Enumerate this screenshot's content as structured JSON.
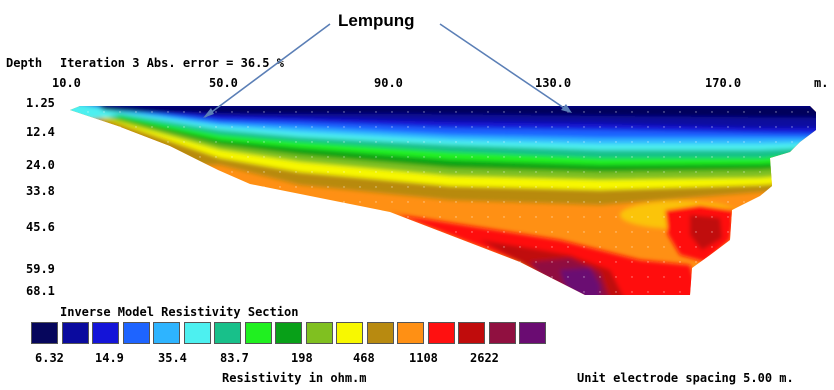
{
  "callout": {
    "label": "Lempung"
  },
  "header": {
    "depth_label": "Depth",
    "iteration_text": "Iteration 3 Abs. error = 36.5 %",
    "x_unit": "m."
  },
  "x_axis": {
    "tick_labels": [
      "10.0",
      "50.0",
      "90.0",
      "130.0",
      "170.0"
    ],
    "values": [
      10,
      50,
      90,
      130,
      170
    ]
  },
  "y_axis": {
    "tick_labels": [
      "1.25",
      "12.4",
      "24.0",
      "33.8",
      "45.6",
      "59.9",
      "68.1"
    ],
    "values": [
      1.25,
      12.4,
      24.0,
      33.8,
      45.6,
      59.9,
      68.1
    ]
  },
  "section_title": "Inverse Model Resistivity Section",
  "legend": {
    "colors": [
      "#06065c",
      "#0a0a9e",
      "#1414d8",
      "#1e64ff",
      "#2eb4ff",
      "#4df0f0",
      "#18c08a",
      "#20f020",
      "#08a018",
      "#80c020",
      "#f8f800",
      "#b88a10",
      "#ff9014",
      "#ff1010",
      "#c00c0c",
      "#901040",
      "#6a0c72"
    ],
    "value_labels": [
      "6.32",
      "14.9",
      "35.4",
      "83.7",
      "198",
      "468",
      "1108",
      "2622"
    ],
    "unit_label": "Resistivity in ohm.m"
  },
  "electrode_spacing": "Unit electrode spacing 5.00 m."
}
